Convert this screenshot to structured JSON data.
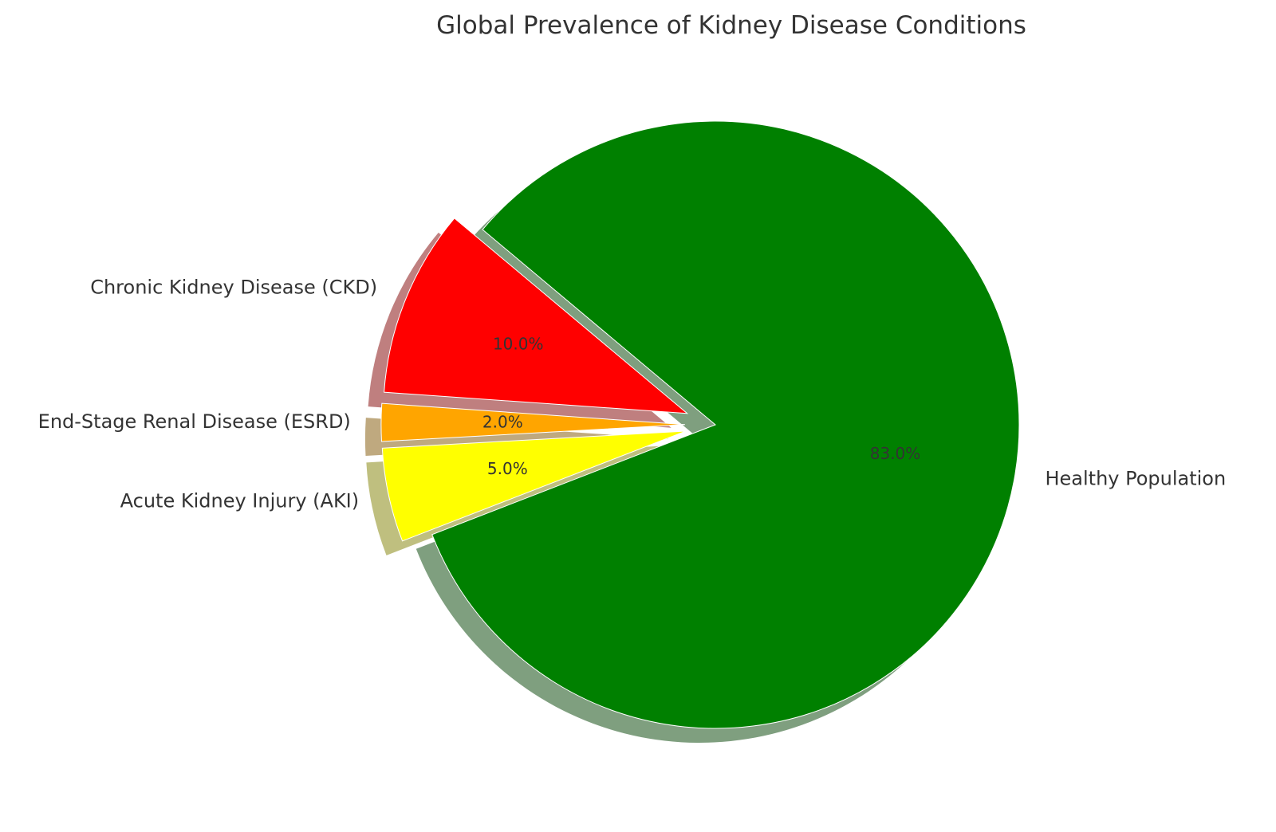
{
  "chart_data": {
    "type": "pie",
    "title": "Global Prevalence of Kidney Disease Conditions",
    "start_angle_deg": 140,
    "direction": "counterclockwise",
    "shadow": true,
    "slices": [
      {
        "label": "Chronic Kidney Disease (CKD)",
        "value": 10.0,
        "pct_label": "10.0%",
        "color": "#ff0000",
        "exploded": true
      },
      {
        "label": "End-Stage Renal Disease (ESRD)",
        "value": 2.0,
        "pct_label": "2.0%",
        "color": "#ffa500",
        "exploded": true
      },
      {
        "label": "Acute Kidney Injury (AKI)",
        "value": 5.0,
        "pct_label": "5.0%",
        "color": "#ffff00",
        "exploded": true
      },
      {
        "label": "Healthy Population",
        "value": 83.0,
        "pct_label": "83.0%",
        "color": "#008000",
        "exploded": false
      }
    ]
  }
}
